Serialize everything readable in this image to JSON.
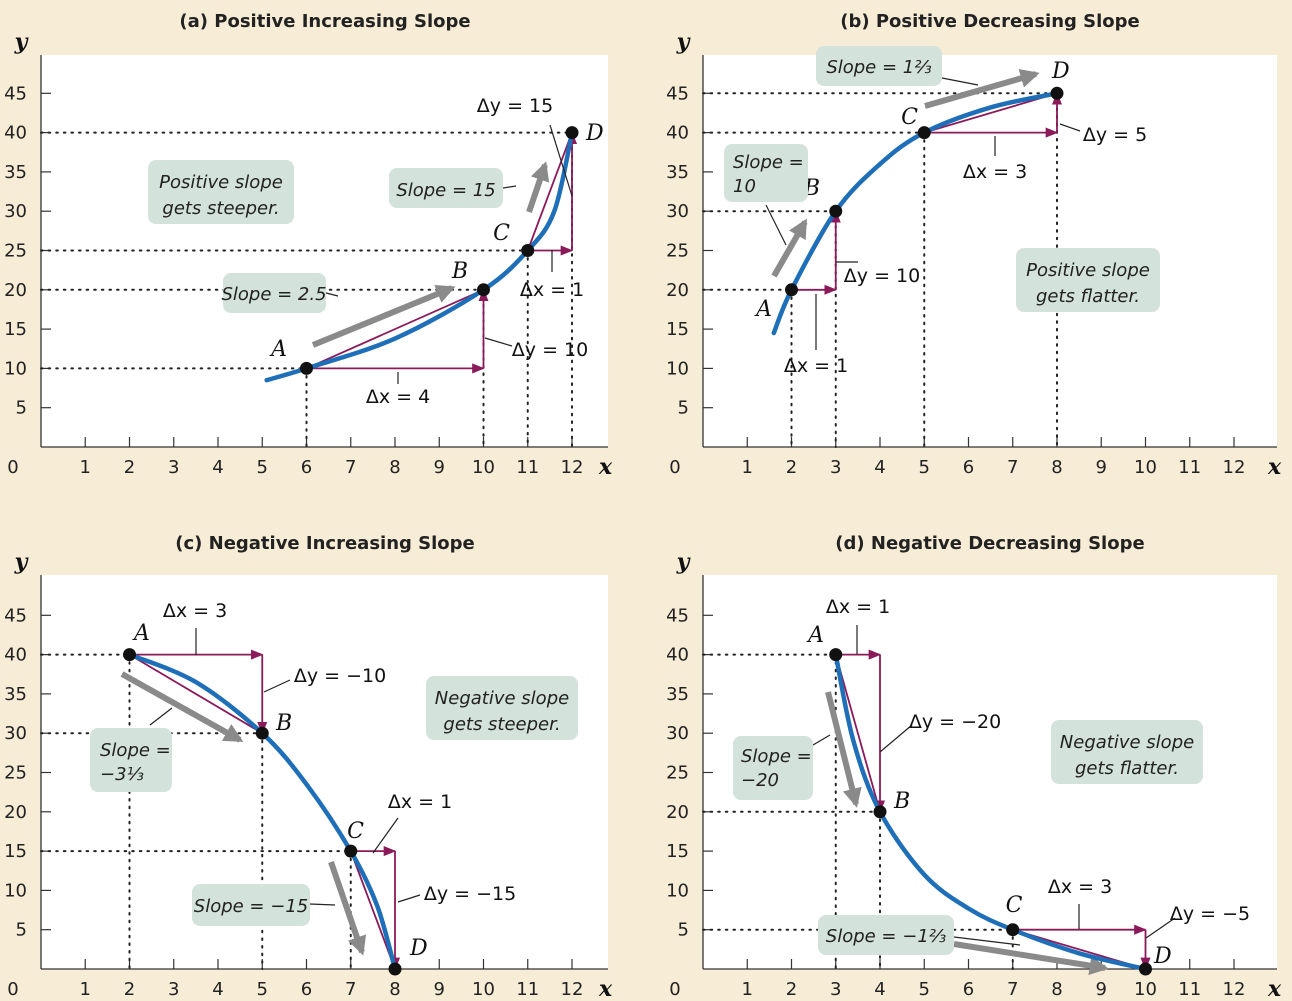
{
  "chart_data": [
    {
      "type": "line",
      "title": "(a) Positive Increasing Slope",
      "xlabel": "x",
      "ylabel": "y",
      "xlim": [
        0,
        13
      ],
      "ylim": [
        0,
        50
      ],
      "x_ticks": [
        "0",
        "1",
        "2",
        "3",
        "4",
        "5",
        "6",
        "7",
        "8",
        "9",
        "10",
        "11",
        "12"
      ],
      "y_ticks": [
        "5",
        "10",
        "15",
        "20",
        "25",
        "30",
        "35",
        "40",
        "45"
      ],
      "points": [
        {
          "label": "A",
          "x": 6,
          "y": 10
        },
        {
          "label": "B",
          "x": 10,
          "y": 20
        },
        {
          "label": "C",
          "x": 11,
          "y": 25
        },
        {
          "label": "D",
          "x": 12,
          "y": 40
        }
      ],
      "curve": [
        [
          5.1,
          8.5
        ],
        [
          6,
          10
        ],
        [
          8,
          13.8
        ],
        [
          10,
          20
        ],
        [
          11,
          25
        ],
        [
          11.6,
          30
        ],
        [
          12,
          40
        ]
      ],
      "deltas": [
        {
          "from": "A",
          "to": "B",
          "dx_label": "Δx = 4",
          "dy_label": "Δy = 10"
        },
        {
          "from": "C",
          "to": "D",
          "dx_label": "Δx = 1",
          "dy_label": "Δy = 15"
        }
      ],
      "slope_labels": [
        "Slope = 2.5",
        "Slope = 15"
      ],
      "annotation": [
        "Positive slope",
        "gets steeper."
      ]
    },
    {
      "type": "line",
      "title": "(b) Positive Decreasing Slope",
      "xlabel": "x",
      "ylabel": "y",
      "xlim": [
        0,
        13
      ],
      "ylim": [
        0,
        50
      ],
      "x_ticks": [
        "0",
        "1",
        "2",
        "3",
        "4",
        "5",
        "6",
        "7",
        "8",
        "9",
        "10",
        "11",
        "12"
      ],
      "y_ticks": [
        "5",
        "10",
        "15",
        "20",
        "25",
        "30",
        "35",
        "40",
        "45"
      ],
      "points": [
        {
          "label": "A",
          "x": 2,
          "y": 20
        },
        {
          "label": "B",
          "x": 3,
          "y": 30
        },
        {
          "label": "C",
          "x": 5,
          "y": 40
        },
        {
          "label": "D",
          "x": 8,
          "y": 45
        }
      ],
      "curve": [
        [
          1.6,
          14.5
        ],
        [
          2,
          20
        ],
        [
          3,
          30
        ],
        [
          4,
          36
        ],
        [
          5,
          40
        ],
        [
          6.5,
          43.2
        ],
        [
          8,
          45
        ]
      ],
      "deltas": [
        {
          "from": "A",
          "to": "B",
          "dx_label": "Δx = 1",
          "dy_label": "Δy = 10"
        },
        {
          "from": "C",
          "to": "D",
          "dx_label": "Δx = 3",
          "dy_label": "Δy = 5"
        }
      ],
      "slope_labels": [
        "Slope = 10",
        "Slope = 1⅔"
      ],
      "annotation": [
        "Positive slope",
        "gets flatter."
      ]
    },
    {
      "type": "line",
      "title": "(c) Negative Increasing Slope",
      "xlabel": "x",
      "ylabel": "y",
      "xlim": [
        0,
        13
      ],
      "ylim": [
        0,
        50
      ],
      "x_ticks": [
        "0",
        "1",
        "2",
        "3",
        "4",
        "5",
        "6",
        "7",
        "8",
        "9",
        "10",
        "11",
        "12"
      ],
      "y_ticks": [
        "5",
        "10",
        "15",
        "20",
        "25",
        "30",
        "35",
        "40",
        "45"
      ],
      "points": [
        {
          "label": "A",
          "x": 2,
          "y": 40
        },
        {
          "label": "B",
          "x": 5,
          "y": 30
        },
        {
          "label": "C",
          "x": 7,
          "y": 15
        },
        {
          "label": "D",
          "x": 8,
          "y": 0
        }
      ],
      "curve": [
        [
          2,
          40
        ],
        [
          3.5,
          36.5
        ],
        [
          5,
          30
        ],
        [
          6,
          23.5
        ],
        [
          7,
          15
        ],
        [
          7.6,
          8
        ],
        [
          8,
          0
        ]
      ],
      "deltas": [
        {
          "from": "A",
          "to": "B",
          "dx_label": "Δx = 3",
          "dy_label": "Δy = −10"
        },
        {
          "from": "C",
          "to": "D",
          "dx_label": "Δx = 1",
          "dy_label": "Δy = −15"
        }
      ],
      "slope_labels": [
        "Slope = −3⅓",
        "Slope = −15"
      ],
      "annotation": [
        "Negative slope",
        "gets steeper."
      ]
    },
    {
      "type": "line",
      "title": "(d) Negative Decreasing Slope",
      "xlabel": "x",
      "ylabel": "y",
      "xlim": [
        0,
        13
      ],
      "ylim": [
        0,
        50
      ],
      "x_ticks": [
        "0",
        "1",
        "2",
        "3",
        "4",
        "5",
        "6",
        "7",
        "8",
        "9",
        "10",
        "11",
        "12"
      ],
      "y_ticks": [
        "5",
        "10",
        "15",
        "20",
        "25",
        "30",
        "35",
        "40",
        "45"
      ],
      "points": [
        {
          "label": "A",
          "x": 3,
          "y": 40
        },
        {
          "label": "B",
          "x": 4,
          "y": 20
        },
        {
          "label": "C",
          "x": 7,
          "y": 5
        },
        {
          "label": "D",
          "x": 10,
          "y": 0
        }
      ],
      "curve": [
        [
          3,
          40
        ],
        [
          3.4,
          29
        ],
        [
          4,
          20
        ],
        [
          5,
          12
        ],
        [
          6,
          7.7
        ],
        [
          7,
          5
        ],
        [
          8.5,
          2
        ],
        [
          10,
          0
        ]
      ],
      "deltas": [
        {
          "from": "A",
          "to": "B",
          "dx_label": "Δx = 1",
          "dy_label": "Δy = −20"
        },
        {
          "from": "C",
          "to": "D",
          "dx_label": "Δx = 3",
          "dy_label": "Δy = −5"
        }
      ],
      "slope_labels": [
        "Slope = −20",
        "Slope = −1⅔"
      ],
      "annotation": [
        "Negative slope",
        "gets flatter."
      ]
    }
  ],
  "colors": {
    "background": "#f7ecd6",
    "plot_area": "#ffffff",
    "curve": "#1f6fb8",
    "secant": "#8b1a5a",
    "gray_arrow": "#8a8a8a",
    "callout": "#d3e2db"
  }
}
